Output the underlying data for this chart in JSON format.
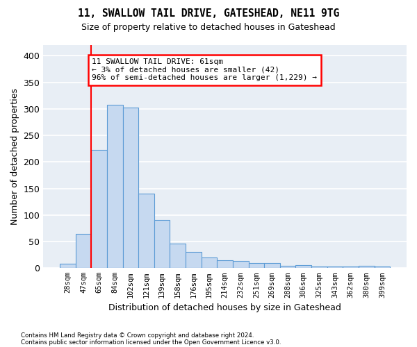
{
  "title1": "11, SWALLOW TAIL DRIVE, GATESHEAD, NE11 9TG",
  "title2": "Size of property relative to detached houses in Gateshead",
  "xlabel": "Distribution of detached houses by size in Gateshead",
  "ylabel": "Number of detached properties",
  "footer1": "Contains HM Land Registry data © Crown copyright and database right 2024.",
  "footer2": "Contains public sector information licensed under the Open Government Licence v3.0.",
  "bar_labels": [
    "28sqm",
    "47sqm",
    "65sqm",
    "84sqm",
    "102sqm",
    "121sqm",
    "139sqm",
    "158sqm",
    "176sqm",
    "195sqm",
    "214sqm",
    "232sqm",
    "251sqm",
    "269sqm",
    "288sqm",
    "306sqm",
    "325sqm",
    "343sqm",
    "362sqm",
    "380sqm",
    "399sqm"
  ],
  "bar_values": [
    8,
    65,
    222,
    307,
    303,
    140,
    90,
    46,
    31,
    20,
    15,
    14,
    10,
    9,
    4,
    5,
    3,
    3,
    3,
    4,
    3
  ],
  "bar_color": "#c6d9f0",
  "bar_edge_color": "#5b9bd5",
  "red_line_x": 1.5,
  "annotation_text": "11 SWALLOW TAIL DRIVE: 61sqm\n← 3% of detached houses are smaller (42)\n96% of semi-detached houses are larger (1,229) →",
  "annotation_box_color": "white",
  "annotation_border_color": "red",
  "ylim": [
    0,
    420
  ],
  "yticks": [
    0,
    50,
    100,
    150,
    200,
    250,
    300,
    350,
    400
  ],
  "background_color": "#e8eef5",
  "grid_color": "white"
}
